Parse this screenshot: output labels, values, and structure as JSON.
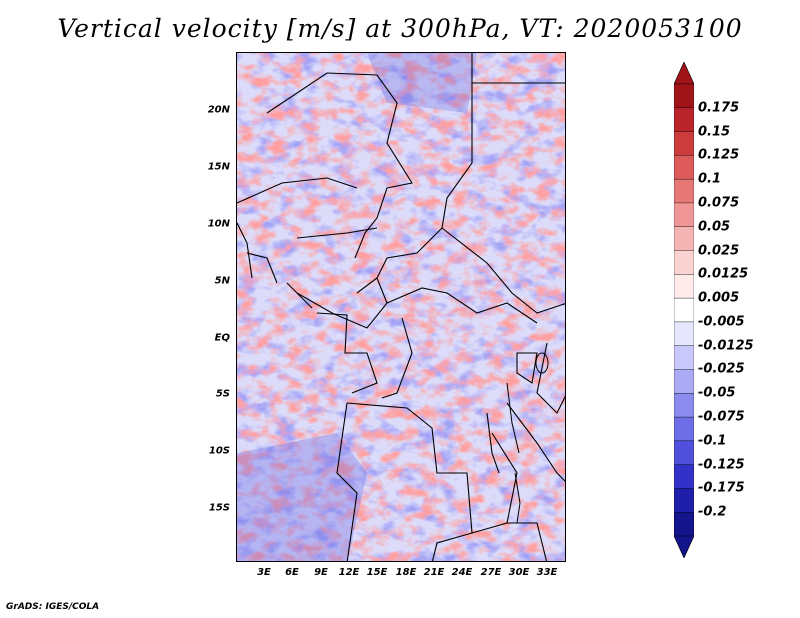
{
  "title": "Vertical velocity [m/s] at 300hPa, VT: 2020053100",
  "credit": "GrADS: IGES/COLA",
  "map": {
    "variable": "vertical velocity",
    "units": "m/s",
    "level": "300hPa",
    "valid_time": "2020053100",
    "lat_labels": [
      "20N",
      "15N",
      "10N",
      "5N",
      "EQ",
      "5S",
      "10S",
      "15S"
    ],
    "lon_labels": [
      "3E",
      "6E",
      "9E",
      "12E",
      "15E",
      "18E",
      "21E",
      "24E",
      "27E",
      "30E",
      "33E"
    ],
    "lat_range": [
      -20,
      24.5
    ],
    "lon_range": [
      0,
      35
    ],
    "lat_values": [
      20,
      15,
      10,
      5,
      0,
      -5,
      -10,
      -15
    ],
    "lon_values": [
      3,
      6,
      9,
      12,
      15,
      18,
      21,
      24,
      27,
      30,
      33
    ]
  },
  "colorbar": {
    "labels": [
      "0.175",
      "0.15",
      "0.125",
      "0.1",
      "0.075",
      "0.05",
      "0.025",
      "0.0125",
      "0.005",
      "-0.005",
      "-0.0125",
      "-0.025",
      "-0.05",
      "-0.075",
      "-0.1",
      "-0.125",
      "-0.175",
      "-0.2"
    ],
    "colors": [
      "#a01419",
      "#b9242a",
      "#cd3c3c",
      "#dc5a5a",
      "#e67878",
      "#f09696",
      "#f5b4b4",
      "#fad2d2",
      "#ffeaea",
      "#ffffff",
      "#e6e6ff",
      "#c8c8fa",
      "#aaaaf5",
      "#8c8cee",
      "#6e6ee6",
      "#5050dc",
      "#3232c8",
      "#1e1eaa",
      "#14148c"
    ],
    "arrow_top_color": "#a01419",
    "arrow_bottom_color": "#14148c"
  },
  "colors": {
    "positive": "#e05050",
    "negative": "#5050dc",
    "border": "#000000"
  }
}
